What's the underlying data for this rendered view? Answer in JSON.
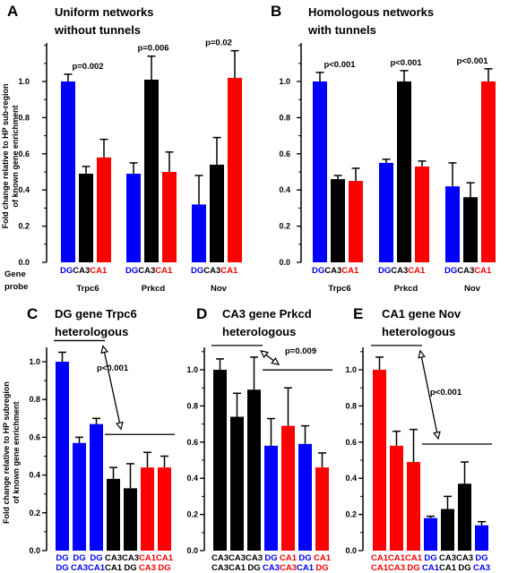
{
  "colors": {
    "blue": "#0000ff",
    "black": "#000000",
    "red": "#ff0000"
  },
  "row_label": [
    "Gene",
    "probe"
  ],
  "chart_data": [
    {
      "panel": "A",
      "type": "bar",
      "title": [
        "Uniform networks",
        "without tunnels"
      ],
      "ylabel": [
        "Fold change relative to HP sub-region",
        "of known gene enrichment"
      ],
      "ylim": [
        0,
        1.2
      ],
      "yticks": [
        0.0,
        0.2,
        0.4,
        0.6,
        0.8,
        1.0
      ],
      "ytick_labels": [
        "0.0",
        "0.2",
        "0.4",
        "0.6",
        "0.8",
        "1.0"
      ],
      "groups": [
        {
          "gene": "Trpc6",
          "pvalue": "p=0.002",
          "bars": [
            {
              "label": "DG",
              "value": 1.0,
              "error": 0.04,
              "color": "blue"
            },
            {
              "label": "CA3",
              "value": 0.49,
              "error": 0.04,
              "color": "black"
            },
            {
              "label": "CA1",
              "value": 0.58,
              "error": 0.1,
              "color": "red"
            }
          ]
        },
        {
          "gene": "Prkcd",
          "pvalue": "p=0.006",
          "bars": [
            {
              "label": "DG",
              "value": 0.49,
              "error": 0.06,
              "color": "blue"
            },
            {
              "label": "CA3",
              "value": 1.01,
              "error": 0.13,
              "color": "black"
            },
            {
              "label": "CA1",
              "value": 0.5,
              "error": 0.11,
              "color": "red"
            }
          ]
        },
        {
          "gene": "Nov",
          "pvalue": "p=0.02",
          "bars": [
            {
              "label": "DG",
              "value": 0.32,
              "error": 0.16,
              "color": "blue"
            },
            {
              "label": "CA3",
              "value": 0.54,
              "error": 0.15,
              "color": "black"
            },
            {
              "label": "CA1",
              "value": 1.02,
              "error": 0.15,
              "color": "red"
            }
          ]
        }
      ]
    },
    {
      "panel": "B",
      "type": "bar",
      "title": [
        "Homologous networks",
        "with tunnels"
      ],
      "ylim": [
        0,
        1.2
      ],
      "yticks": [
        0.0,
        0.2,
        0.4,
        0.6,
        0.8,
        1.0
      ],
      "ytick_labels": [
        "0.0",
        "0.2",
        "0.4",
        "0.6",
        "0.8",
        "1.0"
      ],
      "groups": [
        {
          "gene": "Trpc6",
          "pvalue": "p<0.001",
          "bars": [
            {
              "label": "DG",
              "value": 1.0,
              "error": 0.05,
              "color": "blue"
            },
            {
              "label": "CA3",
              "value": 0.46,
              "error": 0.02,
              "color": "black"
            },
            {
              "label": "CA1",
              "value": 0.45,
              "error": 0.07,
              "color": "red"
            }
          ]
        },
        {
          "gene": "Prkcd",
          "pvalue": "p<0.001",
          "bars": [
            {
              "label": "DG",
              "value": 0.55,
              "error": 0.02,
              "color": "blue"
            },
            {
              "label": "CA3",
              "value": 1.0,
              "error": 0.06,
              "color": "black"
            },
            {
              "label": "CA1",
              "value": 0.53,
              "error": 0.03,
              "color": "red"
            }
          ]
        },
        {
          "gene": "Nov",
          "pvalue": "p<0.001",
          "bars": [
            {
              "label": "DG",
              "value": 0.42,
              "error": 0.13,
              "color": "blue"
            },
            {
              "label": "CA3",
              "value": 0.36,
              "error": 0.08,
              "color": "black"
            },
            {
              "label": "CA1",
              "value": 1.0,
              "error": 0.07,
              "color": "red"
            }
          ]
        }
      ]
    },
    {
      "panel": "C",
      "type": "bar",
      "title": [
        "DG gene Trpc6",
        "heterologous"
      ],
      "ylabel": [
        "Fold change relative to HP subregion",
        "of known gene enrichment"
      ],
      "ylim": [
        0,
        1.1
      ],
      "yticks": [
        0.0,
        0.2,
        0.4,
        0.6,
        0.8,
        1.0
      ],
      "ytick_labels": [
        "0.0",
        "0.2",
        "0.4",
        "0.6",
        "0.8",
        "1.0"
      ],
      "pvalue": "p<0.001",
      "bars": [
        {
          "label": [
            "DG",
            "DG"
          ],
          "value": 1.0,
          "error": 0.05,
          "color": "blue"
        },
        {
          "label": [
            "DG",
            "CA3"
          ],
          "value": 0.57,
          "error": 0.03,
          "color": "blue"
        },
        {
          "label": [
            "DG",
            "CA1"
          ],
          "value": 0.67,
          "error": 0.03,
          "color": "blue"
        },
        {
          "label": [
            "CA3",
            "CA1"
          ],
          "value": 0.38,
          "error": 0.06,
          "color": "black"
        },
        {
          "label": [
            "CA3",
            "DG"
          ],
          "value": 0.33,
          "error": 0.13,
          "color": "black"
        },
        {
          "label": [
            "CA1",
            "CA3"
          ],
          "value": 0.44,
          "error": 0.08,
          "color": "red"
        },
        {
          "label": [
            "CA1",
            "DG"
          ],
          "value": 0.44,
          "error": 0.06,
          "color": "red"
        }
      ]
    },
    {
      "panel": "D",
      "type": "bar",
      "title": [
        "CA3 gene Prkcd",
        "heterologous"
      ],
      "ylim": [
        0,
        1.1
      ],
      "yticks": [
        0.0,
        0.2,
        0.4,
        0.6,
        0.8,
        1.0
      ],
      "ytick_labels": [
        "0.0",
        "0.2",
        "0.4",
        "0.6",
        "0.8",
        "1.0"
      ],
      "pvalue": "p=0.009",
      "bars": [
        {
          "label": [
            "CA3",
            "CA3"
          ],
          "value": 1.0,
          "error": 0.06,
          "color": "black"
        },
        {
          "label": [
            "CA3",
            "CA1"
          ],
          "value": 0.74,
          "error": 0.13,
          "color": "black"
        },
        {
          "label": [
            "CA3",
            "DG"
          ],
          "value": 0.89,
          "error": 0.18,
          "color": "black"
        },
        {
          "label": [
            "DG",
            "CA3"
          ],
          "value": 0.58,
          "error": 0.15,
          "color": "blue"
        },
        {
          "label": [
            "CA1",
            "CA3"
          ],
          "value": 0.69,
          "error": 0.21,
          "color": "red"
        },
        {
          "label": [
            "DG",
            "CA1"
          ],
          "value": 0.59,
          "error": 0.1,
          "color": "blue"
        },
        {
          "label": [
            "CA1",
            "DG"
          ],
          "value": 0.46,
          "error": 0.08,
          "color": "red"
        }
      ]
    },
    {
      "panel": "E",
      "type": "bar",
      "title": [
        "CA1 gene Nov",
        "heterologous"
      ],
      "ylim": [
        0,
        1.1
      ],
      "yticks": [
        0.0,
        0.2,
        0.4,
        0.6,
        0.8,
        1.0
      ],
      "ytick_labels": [
        "0.0",
        "0.2",
        "0.4",
        "0.6",
        "0.8",
        "1.0"
      ],
      "pvalue": "p<0.001",
      "bars": [
        {
          "label": [
            "CA1",
            "CA1"
          ],
          "value": 1.0,
          "error": 0.07,
          "color": "red"
        },
        {
          "label": [
            "CA1",
            "CA3"
          ],
          "value": 0.58,
          "error": 0.08,
          "color": "red"
        },
        {
          "label": [
            "CA1",
            "DG"
          ],
          "value": 0.49,
          "error": 0.18,
          "color": "red"
        },
        {
          "label": [
            "DG",
            "CA1"
          ],
          "value": 0.18,
          "error": 0.01,
          "color": "blue"
        },
        {
          "label": [
            "CA3",
            "CA1"
          ],
          "value": 0.23,
          "error": 0.07,
          "color": "black"
        },
        {
          "label": [
            "CA3",
            "DG"
          ],
          "value": 0.37,
          "error": 0.12,
          "color": "black"
        },
        {
          "label": [
            "DG",
            "CA3"
          ],
          "value": 0.14,
          "error": 0.02,
          "color": "blue"
        }
      ]
    }
  ]
}
